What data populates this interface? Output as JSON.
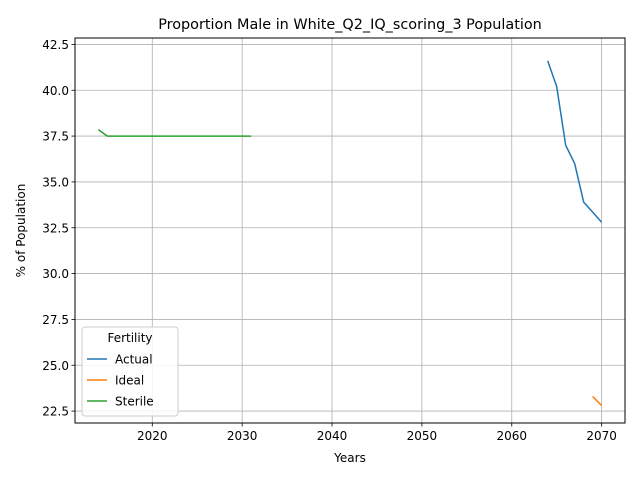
{
  "chart_data": {
    "type": "line",
    "title": "Proportion Male in White_Q2_IQ_scoring_3 Population",
    "xlabel": "Years",
    "ylabel": "% of Population",
    "xlim": [
      2011.4,
      2072.6
    ],
    "ylim": [
      21.85,
      42.85
    ],
    "xticks": [
      2020,
      2030,
      2040,
      2050,
      2060,
      2070
    ],
    "yticks": [
      22.5,
      25.0,
      27.5,
      30.0,
      32.5,
      35.0,
      37.5,
      40.0,
      42.5
    ],
    "grid": true,
    "legend": {
      "title": "Fertility",
      "placement": "lower-left"
    },
    "series": [
      {
        "name": "Actual",
        "color": "#1f77b4",
        "x": [
          2064,
          2065,
          2066,
          2067,
          2068,
          2069,
          2070
        ],
        "y": [
          41.6,
          40.2,
          37.0,
          36.0,
          33.9,
          33.35,
          32.8
        ]
      },
      {
        "name": "Ideal",
        "color": "#ff7f0e",
        "x": [
          2069,
          2070
        ],
        "y": [
          23.3,
          22.8
        ]
      },
      {
        "name": "Sterile",
        "color": "#2ca02c",
        "x": [
          2014,
          2015,
          2016,
          2017,
          2018,
          2019,
          2020,
          2021,
          2022,
          2023,
          2024,
          2025,
          2026,
          2027,
          2028,
          2029,
          2030,
          2031
        ],
        "y": [
          37.85,
          37.5,
          37.5,
          37.5,
          37.5,
          37.5,
          37.5,
          37.5,
          37.5,
          37.5,
          37.5,
          37.5,
          37.5,
          37.5,
          37.5,
          37.5,
          37.5,
          37.5
        ]
      }
    ]
  }
}
